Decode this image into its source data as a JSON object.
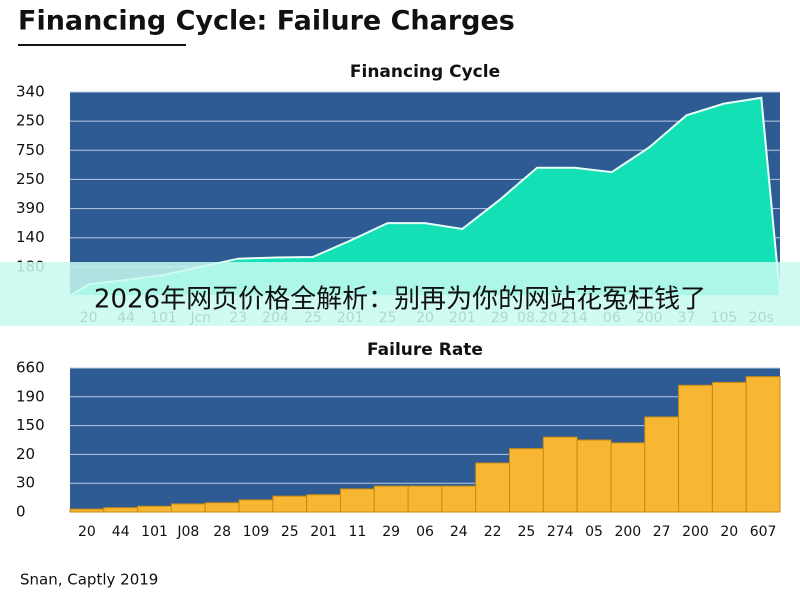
{
  "title": "Financing Cycle: Failure Charges",
  "footer": "Snan, Captly 2019",
  "overlay_text": "2026年网页价格全解析：别再为你的网站花冤枉钱了",
  "chart_data": [
    {
      "type": "area",
      "title": "Financing Cycle",
      "color": "#13e0b4",
      "background": "#2e5b94",
      "grid": true,
      "categories": [
        "20",
        "44",
        "101",
        "Jcn",
        "23",
        "204",
        "25",
        "201",
        "25",
        "20",
        "201",
        "29",
        "08.20",
        "214",
        "06",
        "200",
        "37",
        "105",
        "20s"
      ],
      "values": [
        0.4,
        0.55,
        0.72,
        1.0,
        1.28,
        1.32,
        1.34,
        1.9,
        2.5,
        2.5,
        2.3,
        3.3,
        4.4,
        4.4,
        4.25,
        5.1,
        6.2,
        6.6,
        6.8
      ],
      "ylim": [
        0,
        7
      ],
      "yticks": [
        {
          "value": 1,
          "label": "180"
        },
        {
          "value": 2,
          "label": "140"
        },
        {
          "value": 3,
          "label": "390"
        },
        {
          "value": 4,
          "label": "250"
        },
        {
          "value": 5,
          "label": "750"
        },
        {
          "value": 6,
          "label": "250"
        },
        {
          "value": 7,
          "label": "340"
        }
      ]
    },
    {
      "type": "bar",
      "title": "Failure Rate",
      "color": "#f7b733",
      "background": "#2e5b94",
      "grid": true,
      "categories": [
        "20",
        "44",
        "101",
        "J08",
        "28",
        "109",
        "25",
        "201",
        "11",
        "29",
        "06",
        "24",
        "22",
        "25",
        "274",
        "05",
        "200",
        "27",
        "200",
        "20",
        "607"
      ],
      "values": [
        0.1,
        0.15,
        0.2,
        0.28,
        0.32,
        0.42,
        0.55,
        0.6,
        0.8,
        0.9,
        0.9,
        0.9,
        1.7,
        2.2,
        2.6,
        2.5,
        2.4,
        3.3,
        4.4,
        4.5,
        4.7
      ],
      "ylim": [
        0,
        5
      ],
      "yticks": [
        {
          "value": 0,
          "label": "0"
        },
        {
          "value": 1,
          "label": "30"
        },
        {
          "value": 2,
          "label": "20"
        },
        {
          "value": 3,
          "label": "150"
        },
        {
          "value": 4,
          "label": "190"
        },
        {
          "value": 5,
          "label": "660"
        }
      ]
    }
  ]
}
